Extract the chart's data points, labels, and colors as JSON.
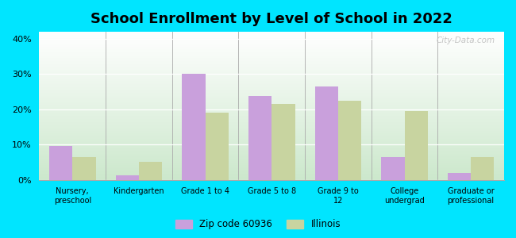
{
  "title": "School Enrollment by Level of School in 2022",
  "categories": [
    "Nursery,\npreschool",
    "Kindergarten",
    "Grade 1 to 4",
    "Grade 5 to 8",
    "Grade 9 to\n12",
    "College\nundergrad",
    "Graduate or\nprofessional"
  ],
  "zip_values": [
    9.5,
    1.2,
    30.0,
    23.8,
    26.5,
    6.5,
    2.0
  ],
  "illinois_values": [
    6.5,
    5.2,
    19.0,
    21.5,
    22.5,
    19.5,
    6.5
  ],
  "zip_color": "#c9a0dc",
  "illinois_color": "#c8d4a0",
  "background_outer": "#00e5ff",
  "grad_top": "#ffffff",
  "grad_bottom": "#c8e6c9",
  "title_fontsize": 13,
  "ylim": [
    0,
    42
  ],
  "yticks": [
    0,
    10,
    20,
    30,
    40
  ],
  "ytick_labels": [
    "0%",
    "10%",
    "20%",
    "30%",
    "40%"
  ],
  "legend_zip_label": "Zip code 60936",
  "legend_illinois_label": "Illinois",
  "watermark": "City-Data.com"
}
